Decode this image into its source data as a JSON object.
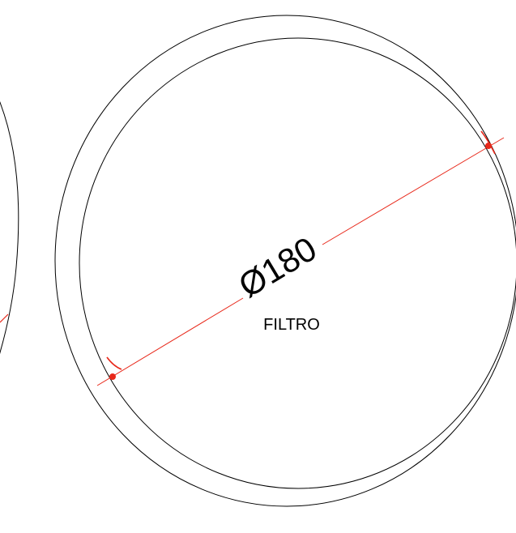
{
  "drawing": {
    "dimension_text": "Ø180",
    "filter_label": "FILTRO",
    "colors": {
      "background": "#ffffff",
      "geometry": "#000000",
      "dimension": "#e8281a",
      "label": "#000000"
    }
  }
}
